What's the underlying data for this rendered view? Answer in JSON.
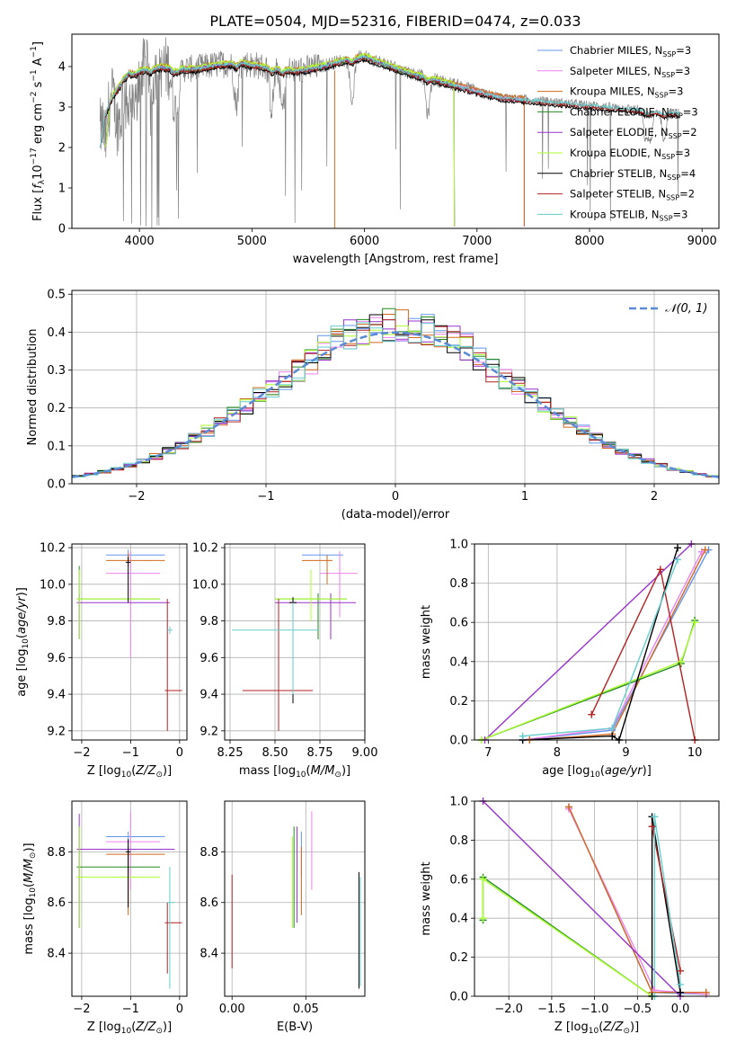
{
  "figure": {
    "title": "PLATE=0504, MJD=52316, FIBERID=0474, z=0.033"
  },
  "colors": {
    "Chabrier MILES": "#6495ed",
    "Salpeter MILES": "#ee82ee",
    "Kroupa MILES": "#d2691e",
    "Chabrier ELODIE": "#228b22",
    "Salpeter ELODIE": "#9932cc",
    "Kroupa ELODIE": "#adff2f",
    "Chabrier STELIB": "#000000",
    "Salpeter STELIB": "#b22222",
    "Kroupa STELIB": "#66cdcd",
    "data": "#808080",
    "gaussian": "#5b8bd6"
  },
  "chart_data": [
    {
      "id": "spectrum",
      "type": "line",
      "xlabel": "wavelength [Angstrom, rest frame]",
      "ylabel": "Flux [f_λ 10^-17 erg cm^-2 s^-1 A^-1]",
      "xlim": [
        3400,
        9150
      ],
      "ylim": [
        0,
        4.8
      ],
      "xticks": [
        4000,
        5000,
        6000,
        7000,
        8000,
        9000
      ],
      "yticks": [
        0,
        1,
        2,
        3,
        4
      ],
      "legend_position": "upper-right",
      "legend": [
        {
          "model": "Chabrier MILES",
          "label": "Chabrier MILES, N",
          "sub": "SSP",
          "suffix": "=3"
        },
        {
          "model": "Salpeter MILES",
          "label": "Salpeter MILES, N",
          "sub": "SSP",
          "suffix": "=3"
        },
        {
          "model": "Kroupa MILES",
          "label": "Kroupa MILES, N",
          "sub": "SSP",
          "suffix": "=3"
        },
        {
          "model": "Chabrier ELODIE",
          "label": "Chabrier ELODIE, N",
          "sub": "SSP",
          "suffix": "=3"
        },
        {
          "model": "Salpeter ELODIE",
          "label": "Salpeter ELODIE, N",
          "sub": "SSP",
          "suffix": "=2"
        },
        {
          "model": "Kroupa ELODIE",
          "label": "Kroupa ELODIE, N",
          "sub": "SSP",
          "suffix": "=3"
        },
        {
          "model": "Chabrier STELIB",
          "label": "Chabrier STELIB, N",
          "sub": "SSP",
          "suffix": "=4"
        },
        {
          "model": "Salpeter STELIB",
          "label": "Salpeter STELIB, N",
          "sub": "SSP",
          "suffix": "=2"
        },
        {
          "model": "Kroupa STELIB",
          "label": "Kroupa STELIB, N",
          "sub": "SSP",
          "suffix": "=3"
        }
      ],
      "continuum": {
        "wavelength": [
          3650,
          3700,
          3800,
          3900,
          4000,
          4100,
          4200,
          4300,
          4500,
          4700,
          4900,
          5000,
          5200,
          5400,
          5600,
          5800,
          6000,
          6200,
          6400,
          6600,
          6800,
          7000,
          7200,
          7400,
          7600,
          7800,
          8000,
          8200,
          8400,
          8600,
          8800
        ],
        "flux": [
          2.4,
          2.9,
          3.5,
          3.9,
          3.9,
          3.95,
          4.0,
          3.95,
          3.95,
          4.05,
          4.1,
          4.05,
          3.95,
          3.9,
          4.0,
          4.15,
          4.25,
          4.05,
          3.85,
          3.7,
          3.55,
          3.4,
          3.25,
          3.2,
          3.15,
          3.1,
          3.05,
          3.0,
          2.95,
          2.9,
          2.85
        ]
      },
      "data_range": [
        3650,
        8800
      ],
      "model_ranges": {
        "MILES": [
          3700,
          7420
        ],
        "ELODIE": [
          3700,
          6800
        ],
        "STELIB": [
          3650,
          8800
        ]
      },
      "absorption_features": [
        3700,
        3800,
        3834,
        3889,
        3934,
        3969,
        4102,
        4304,
        4340,
        4861,
        5175,
        5270,
        5890,
        6563,
        8498,
        8542,
        8662
      ]
    },
    {
      "id": "residuals",
      "type": "line",
      "xlabel": "(data-model)/error",
      "ylabel": "Normed distribution",
      "xlim": [
        -2.5,
        2.5
      ],
      "ylim": [
        0,
        0.51
      ],
      "xticks": [
        -2,
        -1,
        0,
        1,
        2
      ],
      "xtick_labels": [
        "−2",
        "−1",
        "0",
        "1",
        "2"
      ],
      "yticks": [
        0.0,
        0.1,
        0.2,
        0.3,
        0.4,
        0.5
      ],
      "ytick_labels": [
        "0.0",
        "0.1",
        "0.2",
        "0.3",
        "0.4",
        "0.5"
      ],
      "legend": "𝒩(0, 1)",
      "legend_position": "upper-right",
      "bin_width": 0.1
    },
    {
      "id": "age-vs-Z",
      "type": "scatter",
      "xlabel": "Z [log10(Z/Z☉)]",
      "ylabel": "age [log10(age/yr)]",
      "xlim": [
        -2.2,
        0.15
      ],
      "ylim": [
        9.15,
        10.22
      ],
      "xticks": [
        -2,
        -1,
        0
      ],
      "xtick_labels": [
        "−2",
        "−1",
        "0"
      ],
      "yticks": [
        9.2,
        9.4,
        9.6,
        9.8,
        10.0,
        10.2
      ],
      "ytick_labels": [
        "9.2",
        "9.4",
        "9.6",
        "9.8",
        "10.0",
        "10.2"
      ],
      "points": [
        {
          "model": "Chabrier MILES",
          "x": -1.05,
          "xlo": -1.5,
          "xhi": -0.3,
          "y": 10.16,
          "ylo": 10.13,
          "yhi": 10.19
        },
        {
          "model": "Salpeter MILES",
          "x": -1.0,
          "xlo": -1.5,
          "xhi": -0.4,
          "y": 10.06,
          "ylo": 9.6,
          "yhi": 10.18
        },
        {
          "model": "Kroupa MILES",
          "x": -1.05,
          "xlo": -1.5,
          "xhi": -0.3,
          "y": 10.13,
          "ylo": 10.1,
          "yhi": 10.17
        },
        {
          "model": "Chabrier ELODIE",
          "x": -2.05,
          "xlo": -2.1,
          "xhi": -0.4,
          "y": 9.92,
          "ylo": 9.7,
          "yhi": 10.1
        },
        {
          "model": "Salpeter ELODIE",
          "x": -2.05,
          "xlo": -2.1,
          "xhi": -0.2,
          "y": 9.9,
          "ylo": 9.7,
          "yhi": 9.95
        },
        {
          "model": "Kroupa ELODIE",
          "x": -2.05,
          "xlo": -2.1,
          "xhi": -0.4,
          "y": 9.92,
          "ylo": 9.7,
          "yhi": 10.08
        },
        {
          "model": "Chabrier STELIB",
          "x": -1.05,
          "xlo": -1.1,
          "xhi": -1.0,
          "y": 10.12,
          "ylo": 9.9,
          "yhi": 10.15
        },
        {
          "model": "Salpeter STELIB",
          "x": -0.25,
          "xlo": -0.3,
          "xhi": 0.05,
          "y": 9.42,
          "ylo": 9.2,
          "yhi": 9.92
        },
        {
          "model": "Kroupa STELIB",
          "x": -0.2,
          "xlo": -0.25,
          "xhi": -0.15,
          "y": 9.75,
          "ylo": 9.73,
          "yhi": 9.77
        }
      ]
    },
    {
      "id": "age-vs-mass",
      "type": "scatter",
      "xlabel": "mass [log10(M/M☉)]",
      "ylabel": "",
      "xlim": [
        8.22,
        9.0
      ],
      "ylim": [
        9.15,
        10.22
      ],
      "xticks": [
        8.25,
        8.5,
        8.75,
        9.0
      ],
      "xtick_labels": [
        "8.25",
        "8.50",
        "8.75",
        "9.00"
      ],
      "yticks": [
        9.2,
        9.4,
        9.6,
        9.8,
        10.0,
        10.2
      ],
      "ytick_labels": [
        "9.2",
        "9.4",
        "9.6",
        "9.8",
        "10.0",
        "10.2"
      ],
      "points": [
        {
          "model": "Chabrier MILES",
          "x": 8.86,
          "xlo": 8.65,
          "xhi": 8.88,
          "y": 10.16,
          "ylo": 10.0,
          "yhi": 10.18
        },
        {
          "model": "Salpeter MILES",
          "x": 8.86,
          "xlo": 8.75,
          "xhi": 8.96,
          "y": 10.06,
          "ylo": 9.82,
          "yhi": 10.18
        },
        {
          "model": "Kroupa MILES",
          "x": 8.79,
          "xlo": 8.65,
          "xhi": 8.82,
          "y": 10.13,
          "ylo": 10.0,
          "yhi": 10.16
        },
        {
          "model": "Chabrier ELODIE",
          "x": 8.74,
          "xlo": 8.5,
          "xhi": 8.9,
          "y": 9.92,
          "ylo": 9.7,
          "yhi": 9.95
        },
        {
          "model": "Salpeter ELODIE",
          "x": 8.81,
          "xlo": 8.5,
          "xhi": 8.95,
          "y": 9.9,
          "ylo": 9.7,
          "yhi": 9.95
        },
        {
          "model": "Kroupa ELODIE",
          "x": 8.7,
          "xlo": 8.5,
          "xhi": 8.9,
          "y": 9.92,
          "ylo": 9.8,
          "yhi": 10.08
        },
        {
          "model": "Chabrier STELIB",
          "x": 8.6,
          "xlo": 8.58,
          "xhi": 8.62,
          "y": 9.9,
          "ylo": 9.35,
          "yhi": 9.93
        },
        {
          "model": "Salpeter STELIB",
          "x": 8.52,
          "xlo": 8.32,
          "xhi": 8.71,
          "y": 9.42,
          "ylo": 9.2,
          "yhi": 9.92
        },
        {
          "model": "Kroupa STELIB",
          "x": 8.6,
          "xlo": 8.26,
          "xhi": 8.74,
          "y": 9.75,
          "ylo": 9.4,
          "yhi": 9.9
        }
      ]
    },
    {
      "id": "weight-vs-age",
      "type": "line",
      "xlabel": "age [log10(age/yr)]",
      "ylabel": "mass weight",
      "xlim": [
        6.8,
        10.35
      ],
      "ylim": [
        0,
        1.0
      ],
      "xticks": [
        7,
        8,
        9,
        10
      ],
      "xtick_labels": [
        "7",
        "8",
        "9",
        "10"
      ],
      "yticks": [
        0.0,
        0.2,
        0.4,
        0.6,
        0.8,
        1.0
      ],
      "ytick_labels": [
        "0.0",
        "0.2",
        "0.4",
        "0.6",
        "0.8",
        "1.0"
      ],
      "series": [
        {
          "model": "Chabrier MILES",
          "x": [
            7.5,
            8.8,
            10.2
          ],
          "y": [
            0.0,
            0.05,
            0.97
          ]
        },
        {
          "model": "Salpeter MILES",
          "x": [
            7.5,
            8.8,
            10.1
          ],
          "y": [
            0.0,
            0.06,
            0.96
          ]
        },
        {
          "model": "Kroupa MILES",
          "x": [
            7.6,
            8.8,
            10.15
          ],
          "y": [
            0.0,
            0.03,
            0.97
          ]
        },
        {
          "model": "Chabrier ELODIE",
          "x": [
            6.9,
            9.8,
            10.0
          ],
          "y": [
            0.0,
            0.39,
            0.61
          ]
        },
        {
          "model": "Salpeter ELODIE",
          "x": [
            6.95,
            9.95
          ],
          "y": [
            0.0,
            1.0
          ]
        },
        {
          "model": "Kroupa ELODIE",
          "x": [
            6.9,
            9.8,
            10.0
          ],
          "y": [
            0.0,
            0.4,
            0.6
          ]
        },
        {
          "model": "Chabrier STELIB",
          "x": [
            7.5,
            8.8,
            8.9,
            9.75
          ],
          "y": [
            0.0,
            0.02,
            0.0,
            0.98
          ]
        },
        {
          "model": "Salpeter STELIB",
          "x": [
            8.5,
            9.5,
            10.0
          ],
          "y": [
            0.13,
            0.87,
            0.0
          ]
        },
        {
          "model": "Kroupa STELIB",
          "x": [
            7.5,
            8.8,
            9.75
          ],
          "y": [
            0.02,
            0.06,
            0.92
          ]
        }
      ]
    },
    {
      "id": "mass-vs-Z",
      "type": "scatter",
      "xlabel": "Z [log10(Z/Z☉)]",
      "ylabel": "mass [log10(M/M☉)]",
      "xlim": [
        -2.2,
        0.15
      ],
      "ylim": [
        8.23,
        9.0
      ],
      "xticks": [
        -2,
        -1,
        0
      ],
      "xtick_labels": [
        "−2",
        "−1",
        "0"
      ],
      "yticks": [
        8.4,
        8.6,
        8.8
      ],
      "ytick_labels": [
        "8.4",
        "8.6",
        "8.8"
      ],
      "points": [
        {
          "model": "Chabrier MILES",
          "x": -1.05,
          "xlo": -1.5,
          "xhi": -0.3,
          "y": 8.86,
          "ylo": 8.7,
          "yhi": 8.88
        },
        {
          "model": "Salpeter MILES",
          "x": -1.0,
          "xlo": -1.5,
          "xhi": -0.4,
          "y": 8.84,
          "ylo": 8.65,
          "yhi": 8.96
        },
        {
          "model": "Kroupa MILES",
          "x": -1.05,
          "xlo": -1.5,
          "xhi": -0.3,
          "y": 8.79,
          "ylo": 8.55,
          "yhi": 8.82
        },
        {
          "model": "Chabrier ELODIE",
          "x": -2.05,
          "xlo": -2.1,
          "xhi": -0.4,
          "y": 8.74,
          "ylo": 8.5,
          "yhi": 8.9
        },
        {
          "model": "Salpeter ELODIE",
          "x": -2.05,
          "xlo": -2.1,
          "xhi": -0.1,
          "y": 8.81,
          "ylo": 8.5,
          "yhi": 8.95
        },
        {
          "model": "Kroupa ELODIE",
          "x": -2.05,
          "xlo": -2.1,
          "xhi": -0.4,
          "y": 8.7,
          "ylo": 8.5,
          "yhi": 8.9
        },
        {
          "model": "Chabrier STELIB",
          "x": -1.05,
          "xlo": -1.1,
          "xhi": -1.0,
          "y": 8.8,
          "ylo": 8.58,
          "yhi": 8.85
        },
        {
          "model": "Salpeter STELIB",
          "x": -0.25,
          "xlo": -0.3,
          "xhi": 0.05,
          "y": 8.52,
          "ylo": 8.32,
          "yhi": 8.6
        },
        {
          "model": "Kroupa STELIB",
          "x": -0.2,
          "xlo": -0.25,
          "xhi": -0.1,
          "y": 8.6,
          "ylo": 8.26,
          "yhi": 8.74
        }
      ]
    },
    {
      "id": "mass-vs-ebv",
      "type": "scatter",
      "xlabel": "E(B-V)",
      "ylabel": "",
      "xlim": [
        -0.005,
        0.09
      ],
      "ylim": [
        8.23,
        9.0
      ],
      "xticks": [
        0.0,
        0.05
      ],
      "xtick_labels": [
        "0.00",
        "0.05"
      ],
      "yticks": [
        8.4,
        8.6,
        8.8
      ],
      "ytick_labels": [
        "8.4",
        "8.6",
        "8.8"
      ],
      "points": [
        {
          "model": "Chabrier MILES",
          "x": 0.047,
          "ylo": 8.7,
          "yhi": 8.88
        },
        {
          "model": "Salpeter MILES",
          "x": 0.054,
          "ylo": 8.65,
          "yhi": 8.96
        },
        {
          "model": "Kroupa MILES",
          "x": 0.047,
          "ylo": 8.55,
          "yhi": 8.82
        },
        {
          "model": "Chabrier ELODIE",
          "x": 0.042,
          "ylo": 8.5,
          "yhi": 8.9
        },
        {
          "model": "Salpeter ELODIE",
          "x": 0.044,
          "ylo": 8.52,
          "yhi": 8.9
        },
        {
          "model": "Kroupa ELODIE",
          "x": 0.041,
          "ylo": 8.5,
          "yhi": 8.86
        },
        {
          "model": "Chabrier STELIB",
          "x": 0.086,
          "ylo": 8.26,
          "yhi": 8.72
        },
        {
          "model": "Salpeter STELIB",
          "x": 0.0,
          "ylo": 8.34,
          "yhi": 8.71
        },
        {
          "model": "Kroupa STELIB",
          "x": 0.087,
          "ylo": 8.27,
          "yhi": 8.7
        }
      ]
    },
    {
      "id": "weight-vs-Z",
      "type": "line",
      "xlabel": "Z [log10(Z/Z☉)]",
      "ylabel": "mass weight",
      "xlim": [
        -2.4,
        0.45
      ],
      "ylim": [
        0,
        1.0
      ],
      "xticks": [
        -2.0,
        -1.5,
        -1.0,
        -0.5,
        0.0
      ],
      "xtick_labels": [
        "−2.0",
        "−1.5",
        "−1.0",
        "−0.5",
        "0.0"
      ],
      "yticks": [
        0.0,
        0.2,
        0.4,
        0.6,
        0.8,
        1.0
      ],
      "ytick_labels": [
        "0.0",
        "0.2",
        "0.4",
        "0.6",
        "0.8",
        "1.0"
      ],
      "series": [
        {
          "model": "Chabrier MILES",
          "x": [
            -1.3,
            -0.33,
            0.3
          ],
          "y": [
            0.97,
            0.02,
            0.01
          ]
        },
        {
          "model": "Salpeter MILES",
          "x": [
            -1.3,
            -0.3,
            0.3
          ],
          "y": [
            0.96,
            0.03,
            0.01
          ]
        },
        {
          "model": "Kroupa MILES",
          "x": [
            -1.3,
            -0.33,
            0.3
          ],
          "y": [
            0.97,
            0.02,
            0.02
          ]
        },
        {
          "model": "Chabrier ELODIE",
          "x": [
            -2.3,
            -2.3,
            -0.33
          ],
          "y": [
            0.39,
            0.61,
            0.0
          ]
        },
        {
          "model": "Salpeter ELODIE",
          "x": [
            -2.3,
            0.0
          ],
          "y": [
            1.0,
            0.0
          ]
        },
        {
          "model": "Kroupa ELODIE",
          "x": [
            -2.3,
            -2.3,
            -0.33
          ],
          "y": [
            0.4,
            0.6,
            0.0
          ]
        },
        {
          "model": "Chabrier STELIB",
          "x": [
            -0.33,
            -0.33,
            0.0
          ],
          "y": [
            0.0,
            0.92,
            0.02
          ]
        },
        {
          "model": "Salpeter STELIB",
          "x": [
            -0.33,
            0.0
          ],
          "y": [
            0.87,
            0.13
          ]
        },
        {
          "model": "Kroupa STELIB",
          "x": [
            -0.3,
            -0.3,
            0.0
          ],
          "y": [
            0.0,
            0.92,
            0.06
          ]
        }
      ]
    }
  ]
}
